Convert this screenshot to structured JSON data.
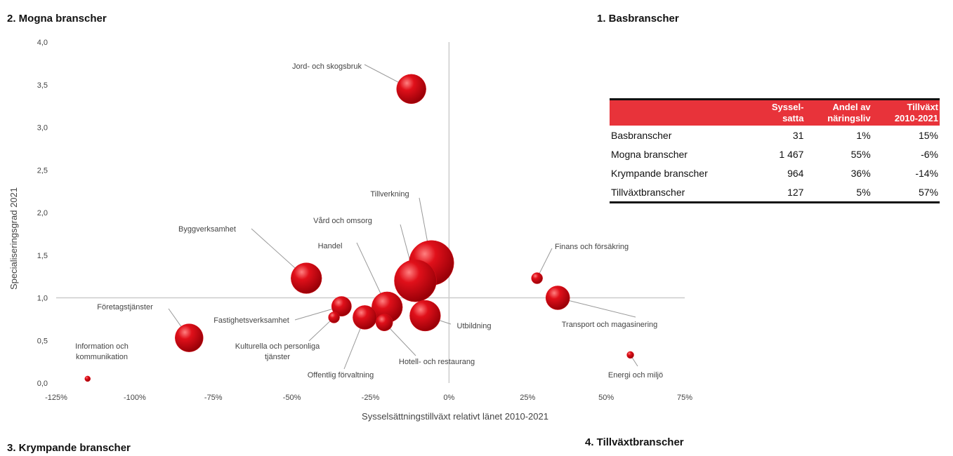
{
  "quadrants": {
    "q1": "1. Basbranscher",
    "q2": "2. Mogna branscher",
    "q3": "3. Krympande branscher",
    "q4": "4. Tillväxtbranscher"
  },
  "table": {
    "header": [
      "",
      "Syssel-\nsatta",
      "Andel av\nnäringsliv",
      "Tillväxt\n2010-2021"
    ],
    "rows": [
      [
        "Basbranscher",
        "31",
        "1%",
        "15%"
      ],
      [
        "Mogna branscher",
        "1 467",
        "55%",
        "-6%"
      ],
      [
        "Krympande branscher",
        "964",
        "36%",
        "-14%"
      ],
      [
        "Tillväxtbranscher",
        "127",
        "5%",
        "57%"
      ]
    ]
  },
  "chart_data": {
    "type": "bubble",
    "x_label": "Sysselsättningstillväxt relativt länet 2010-2021",
    "y_label": "Specialiseringsgrad 2021",
    "xlim": [
      -125,
      75
    ],
    "xticks": [
      {
        "value": -125,
        "label": "-125%"
      },
      {
        "value": -100,
        "label": "-100%"
      },
      {
        "value": -75,
        "label": "-75%"
      },
      {
        "value": -50,
        "label": "-50%"
      },
      {
        "value": -25,
        "label": "-25%"
      },
      {
        "value": 0,
        "label": "0%"
      },
      {
        "value": 25,
        "label": "25%"
      },
      {
        "value": 50,
        "label": "50%"
      },
      {
        "value": 75,
        "label": "75%"
      }
    ],
    "ylim": [
      0,
      4
    ],
    "yticks": [
      {
        "value": 0,
        "label": "0,0"
      },
      {
        "value": 0.5,
        "label": "0,5"
      },
      {
        "value": 1,
        "label": "1,0"
      },
      {
        "value": 1.5,
        "label": "1,5"
      },
      {
        "value": 2,
        "label": "2,0"
      },
      {
        "value": 2.5,
        "label": "2,5"
      },
      {
        "value": 3,
        "label": "3,0"
      },
      {
        "value": 3.5,
        "label": "3,5"
      },
      {
        "value": 4,
        "label": "4,0"
      }
    ],
    "reference_x": 0,
    "reference_y": 1,
    "color": "#e0101a",
    "labels": [
      "Jord- och skogsbruk",
      "Tillverkning",
      "Vård och omsorg",
      "Handel",
      "Byggverksamhet",
      "Utbildning",
      "Finans och försäkring",
      "Transport och magasinering",
      "Energi och miljö",
      "Information och\nkommunikation",
      "Företagstjänster",
      "Fastighetsverksamhet",
      "Kulturella och personliga\ntjänster",
      "Offentlig förvaltning",
      "Hotell- och restaurang"
    ],
    "x": [
      -12,
      -5.6,
      -10.7,
      -19.7,
      -45.4,
      -7.6,
      28,
      34.6,
      57.7,
      -115,
      -82.7,
      -34.2,
      -36.6,
      -26.8,
      -20.6
    ],
    "y": [
      3.45,
      1.41,
      1.2,
      0.89,
      1.23,
      0.79,
      1.23,
      1.0,
      0.33,
      0.05,
      0.53,
      0.9,
      0.77,
      0.77,
      0.71
    ],
    "sizes": [
      440,
      1020,
      900,
      480,
      480,
      480,
      64,
      290,
      25,
      16,
      400,
      200,
      64,
      290,
      144
    ]
  }
}
